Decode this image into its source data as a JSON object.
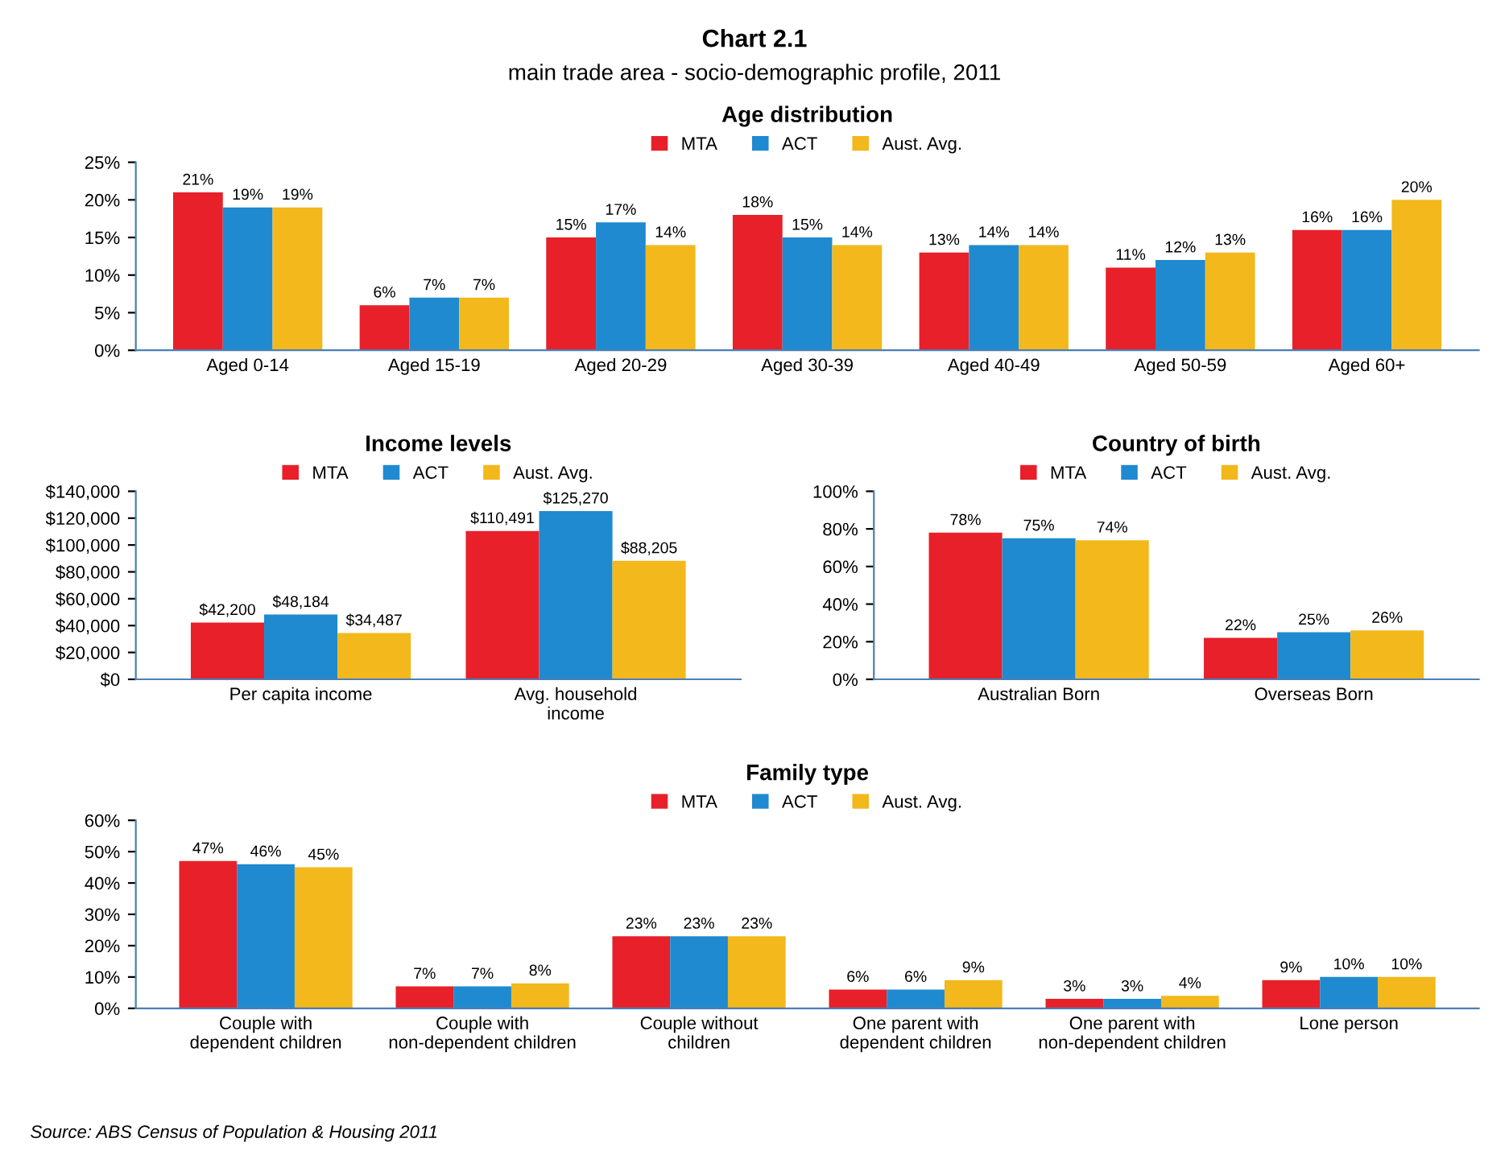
{
  "chart_data": [
    {
      "type": "bar",
      "title": "Age distribution",
      "annotations": [
        "Chart 2.1",
        "main trade area - socio-demographic profile, 2011"
      ],
      "categories": [
        "Aged 0-14",
        "Aged 15-19",
        "Aged 20-29",
        "Aged 30-39",
        "Aged 40-49",
        "Aged 50-59",
        "Aged 60+"
      ],
      "series": [
        {
          "name": "MTA",
          "color": "#e8202a",
          "values": [
            21,
            6,
            15,
            18,
            13,
            11,
            16
          ],
          "value_labels": [
            "21%",
            "6%",
            "15%",
            "18%",
            "13%",
            "11%",
            "16%"
          ]
        },
        {
          "name": "ACT",
          "color": "#1f8ad0",
          "values": [
            19,
            7,
            17,
            15,
            14,
            12,
            16
          ],
          "value_labels": [
            "19%",
            "7%",
            "17%",
            "15%",
            "14%",
            "12%",
            "16%"
          ]
        },
        {
          "name": "Aust. Avg.",
          "color": "#f2b81c",
          "values": [
            19,
            7,
            14,
            14,
            14,
            13,
            20
          ],
          "value_labels": [
            "19%",
            "7%",
            "14%",
            "14%",
            "14%",
            "13%",
            "20%"
          ]
        }
      ],
      "ylim": [
        0,
        25
      ],
      "yticks": [
        {
          "value": 0,
          "label": "0%"
        },
        {
          "value": 5,
          "label": "5%"
        },
        {
          "value": 10,
          "label": "10%"
        },
        {
          "value": 15,
          "label": "15%"
        },
        {
          "value": 20,
          "label": "20%"
        },
        {
          "value": 25,
          "label": "25%"
        }
      ],
      "legend": "top",
      "grid": false
    },
    {
      "type": "bar",
      "title": "Income levels",
      "categories": [
        "Per capita income",
        "Avg. household income"
      ],
      "series": [
        {
          "name": "MTA",
          "color": "#e8202a",
          "values": [
            42200,
            110491
          ],
          "value_labels": [
            "$42,200",
            "$110,491"
          ]
        },
        {
          "name": "ACT",
          "color": "#1f8ad0",
          "values": [
            48184,
            125270
          ],
          "value_labels": [
            "$48,184",
            "$125,270"
          ]
        },
        {
          "name": "Aust. Avg.",
          "color": "#f2b81c",
          "values": [
            34487,
            88205
          ],
          "value_labels": [
            "$34,487",
            "$88,205"
          ]
        }
      ],
      "ylim": [
        0,
        140000
      ],
      "yticks": [
        {
          "value": 0,
          "label": "$0"
        },
        {
          "value": 20000,
          "label": "$20,000"
        },
        {
          "value": 40000,
          "label": "$40,000"
        },
        {
          "value": 60000,
          "label": "$60,000"
        },
        {
          "value": 80000,
          "label": "$80,000"
        },
        {
          "value": 100000,
          "label": "$100,000"
        },
        {
          "value": 120000,
          "label": "$120,000"
        },
        {
          "value": 140000,
          "label": "$140,000"
        }
      ],
      "legend": "top",
      "grid": false
    },
    {
      "type": "bar",
      "title": "Country of birth",
      "categories": [
        "Australian Born",
        "Overseas Born"
      ],
      "series": [
        {
          "name": "MTA",
          "color": "#e8202a",
          "values": [
            78,
            22
          ],
          "value_labels": [
            "78%",
            "22%"
          ]
        },
        {
          "name": "ACT",
          "color": "#1f8ad0",
          "values": [
            75,
            25
          ],
          "value_labels": [
            "75%",
            "25%"
          ]
        },
        {
          "name": "Aust. Avg.",
          "color": "#f2b81c",
          "values": [
            74,
            26
          ],
          "value_labels": [
            "74%",
            "26%"
          ]
        }
      ],
      "ylim": [
        0,
        100
      ],
      "yticks": [
        {
          "value": 0,
          "label": "0%"
        },
        {
          "value": 20,
          "label": "20%"
        },
        {
          "value": 40,
          "label": "40%"
        },
        {
          "value": 60,
          "label": "60%"
        },
        {
          "value": 80,
          "label": "80%"
        },
        {
          "value": 100,
          "label": "100%"
        }
      ],
      "legend": "top",
      "grid": false
    },
    {
      "type": "bar",
      "title": "Family type",
      "annotations": [
        "Source: ABS Census of Population & Housing 2011"
      ],
      "categories": [
        "Couple with dependent children",
        "Couple with non-dependent children",
        "Couple without children",
        "One parent with dependent children",
        "One parent with non-dependent children",
        "Lone person"
      ],
      "series": [
        {
          "name": "MTA",
          "color": "#e8202a",
          "values": [
            47,
            7,
            23,
            6,
            3,
            9
          ],
          "value_labels": [
            "47%",
            "7%",
            "23%",
            "6%",
            "3%",
            "9%"
          ]
        },
        {
          "name": "ACT",
          "color": "#1f8ad0",
          "values": [
            46,
            7,
            23,
            6,
            3,
            10
          ],
          "value_labels": [
            "46%",
            "7%",
            "23%",
            "6%",
            "3%",
            "10%"
          ]
        },
        {
          "name": "Aust. Avg.",
          "color": "#f2b81c",
          "values": [
            45,
            8,
            23,
            9,
            4,
            10
          ],
          "value_labels": [
            "45%",
            "8%",
            "23%",
            "9%",
            "4%",
            "10%"
          ]
        }
      ],
      "ylim": [
        0,
        60
      ],
      "yticks": [
        {
          "value": 0,
          "label": "0%"
        },
        {
          "value": 10,
          "label": "10%"
        },
        {
          "value": 20,
          "label": "20%"
        },
        {
          "value": 30,
          "label": "30%"
        },
        {
          "value": 40,
          "label": "40%"
        },
        {
          "value": 50,
          "label": "50%"
        },
        {
          "value": 60,
          "label": "60%"
        }
      ],
      "legend": "top",
      "grid": false
    }
  ]
}
